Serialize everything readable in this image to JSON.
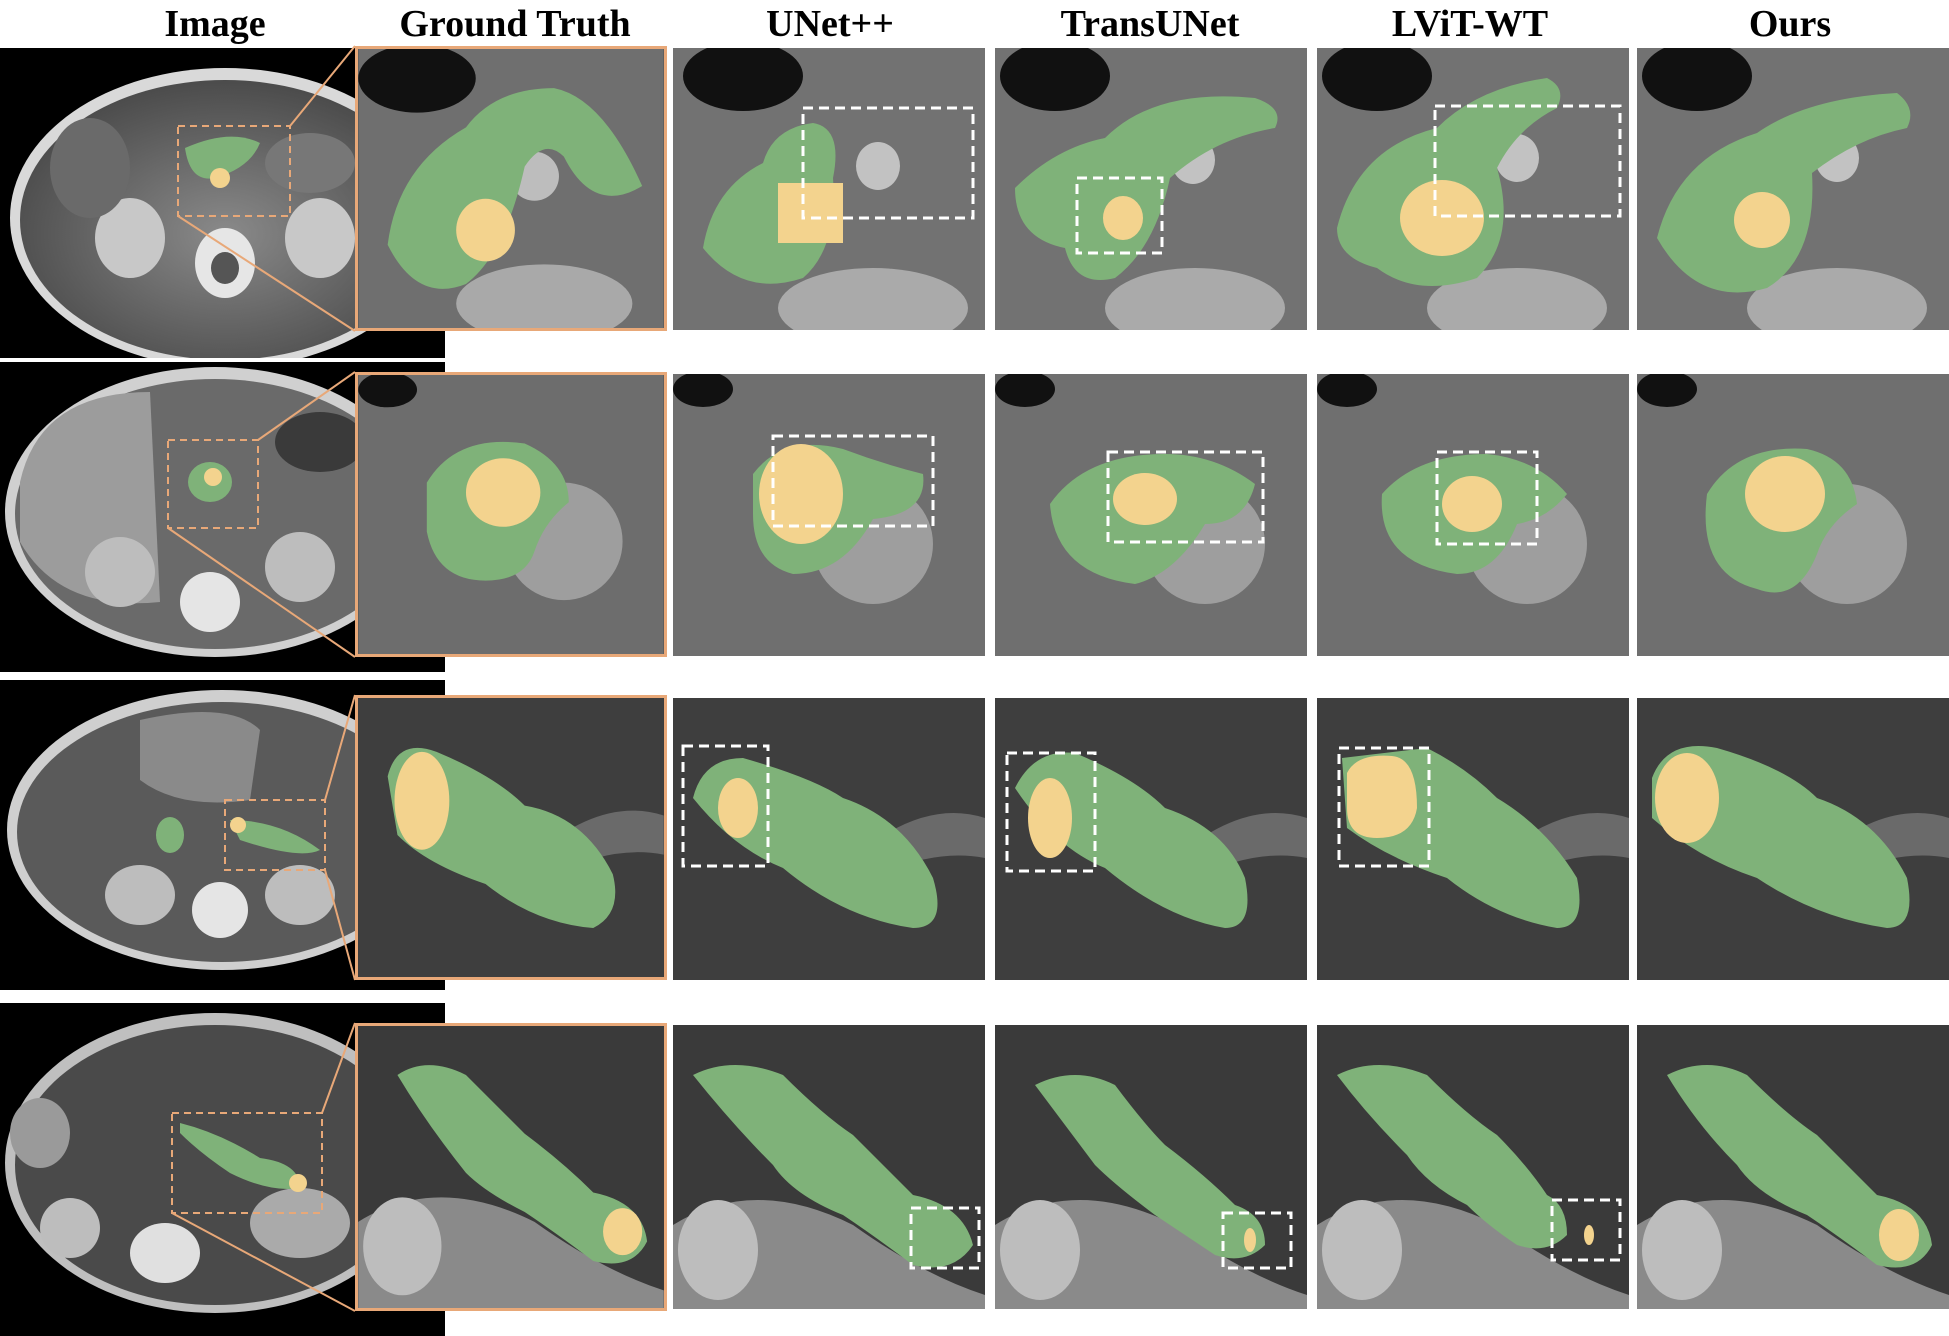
{
  "headers": [
    "Image",
    "Ground Truth",
    "UNet++",
    "TransUNet",
    "LViT-WT",
    "Ours"
  ],
  "colors": {
    "pancreas": "#7fb279",
    "tumor": "#f3d38e",
    "zoom_frame": "#e8a878",
    "error_box": "#ffffff"
  },
  "rows": [
    {
      "id": "case-1"
    },
    {
      "id": "case-2"
    },
    {
      "id": "case-3"
    },
    {
      "id": "case-4"
    }
  ]
}
